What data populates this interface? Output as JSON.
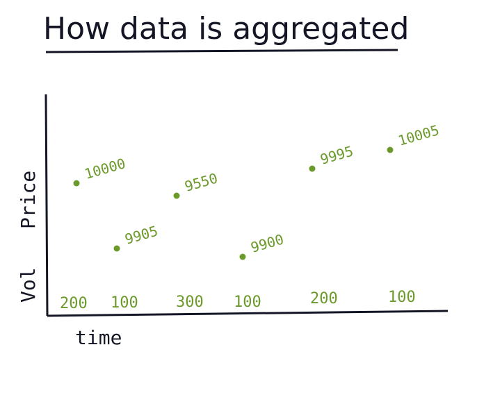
{
  "title": "How data is aggregated",
  "colors": {
    "ink": "#141626",
    "points": "#6b9a2a"
  },
  "chart_data": {
    "type": "scatter",
    "title": "How data is aggregated",
    "xlabel": "time",
    "ylabel_price": "Price",
    "ylabel_vol": "Vol",
    "grid": false,
    "points": [
      {
        "t": 1,
        "price": 10000,
        "label": "10000",
        "vol": "200"
      },
      {
        "t": 2,
        "price": 9905,
        "label": "9905",
        "vol": "100"
      },
      {
        "t": 3,
        "price": 9550,
        "label": "9550",
        "vol": "300"
      },
      {
        "t": 4,
        "price": 9900,
        "label": "9900",
        "vol": "100"
      },
      {
        "t": 5,
        "price": 9995,
        "label": "9995",
        "vol": "200"
      },
      {
        "t": 6,
        "price": 10005,
        "label": "10005",
        "vol": "100"
      }
    ]
  }
}
